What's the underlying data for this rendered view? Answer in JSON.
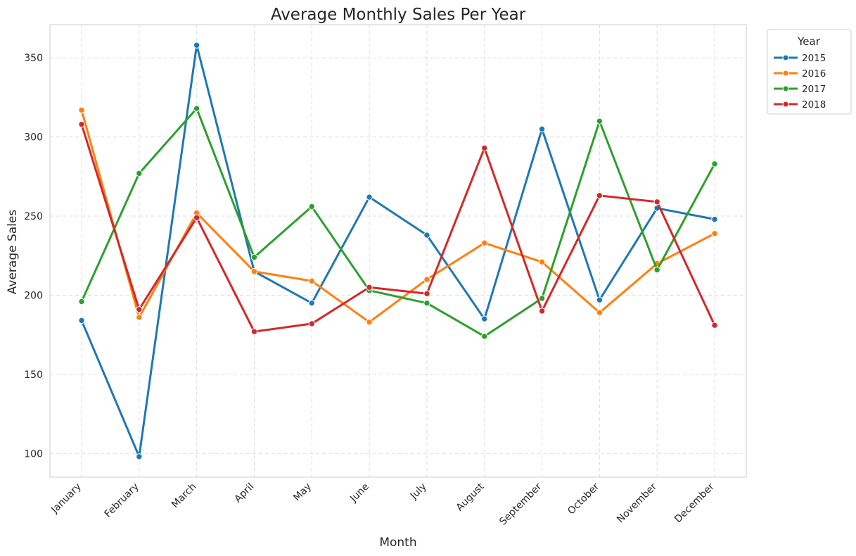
{
  "chart_data": {
    "type": "line",
    "title": "Average Monthly Sales Per Year",
    "xlabel": "Month",
    "ylabel": "Average Sales",
    "categories": [
      "January",
      "February",
      "March",
      "April",
      "May",
      "June",
      "July",
      "August",
      "September",
      "October",
      "November",
      "December"
    ],
    "ylim": [
      85,
      371
    ],
    "yticks": [
      100,
      150,
      200,
      250,
      300,
      350
    ],
    "grid": true,
    "legend": {
      "title": "Year",
      "placement": "outside-top-right"
    },
    "series": [
      {
        "name": "2015",
        "color": "#1f77b4",
        "values": [
          184,
          98,
          358,
          215,
          195,
          262,
          238,
          185,
          305,
          197,
          255,
          248
        ]
      },
      {
        "name": "2016",
        "color": "#ff7f0e",
        "values": [
          317,
          186,
          252,
          215,
          209,
          183,
          210,
          233,
          221,
          189,
          220,
          239
        ]
      },
      {
        "name": "2017",
        "color": "#2ca02c",
        "values": [
          196,
          277,
          318,
          224,
          256,
          203,
          195,
          174,
          198,
          310,
          216,
          283
        ]
      },
      {
        "name": "2018",
        "color": "#d62728",
        "values": [
          308,
          191,
          249,
          177,
          182,
          205,
          201,
          293,
          190,
          263,
          259,
          181
        ]
      }
    ]
  }
}
